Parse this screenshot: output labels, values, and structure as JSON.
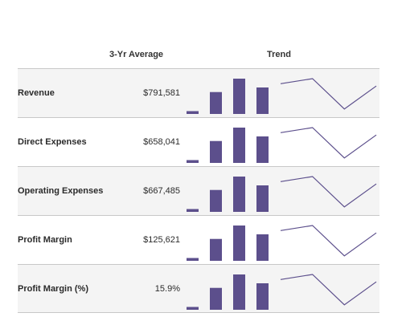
{
  "columns": {
    "average": "3-Yr Average",
    "trend": "Trend"
  },
  "chart_data": {
    "type": "table",
    "columns": [
      "",
      "3-Yr Average",
      "Trend"
    ],
    "bar_color": "#5c4f8c",
    "line_color": "#5c4f8c",
    "rows": [
      {
        "label": "Revenue",
        "average": "$791,581",
        "bars": [
          0.08,
          0.62,
          1.0,
          0.75
        ],
        "line": [
          0.85,
          1.0,
          0.1,
          0.78
        ]
      },
      {
        "label": "Direct Expenses",
        "average": "$658,041",
        "bars": [
          0.08,
          0.62,
          1.0,
          0.75
        ],
        "line": [
          0.85,
          1.0,
          0.1,
          0.78
        ]
      },
      {
        "label": "Operating Expenses",
        "average": "$667,485",
        "bars": [
          0.08,
          0.62,
          1.0,
          0.75
        ],
        "line": [
          0.85,
          1.0,
          0.1,
          0.78
        ]
      },
      {
        "label": "Profit Margin",
        "average": "$125,621",
        "bars": [
          0.08,
          0.62,
          1.0,
          0.75
        ],
        "line": [
          0.85,
          1.0,
          0.1,
          0.78
        ]
      },
      {
        "label": "Profit Margin (%)",
        "average": "15.9%",
        "bars": [
          0.08,
          0.62,
          1.0,
          0.75
        ],
        "line": [
          0.85,
          1.0,
          0.1,
          0.78
        ]
      }
    ]
  }
}
